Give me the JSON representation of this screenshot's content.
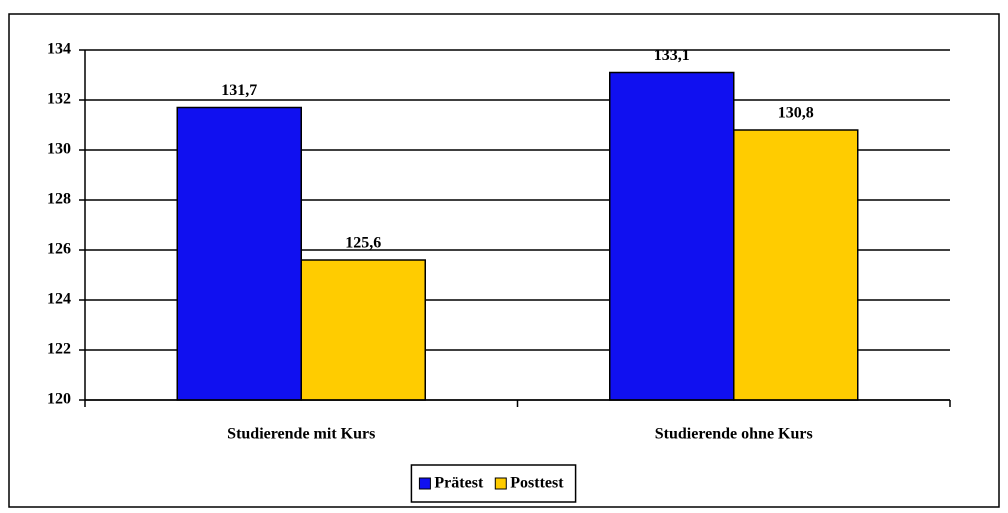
{
  "chart_data": {
    "type": "bar",
    "categories": [
      "Studierende mit Kurs",
      "Studierende ohne Kurs"
    ],
    "series": [
      {
        "name": "Prätest",
        "color": "#1010f0",
        "values": [
          131.7,
          133.1
        ],
        "value_labels": [
          "131,7",
          "133,1"
        ]
      },
      {
        "name": "Posttest",
        "color": "#ffcc00",
        "values": [
          125.6,
          130.8
        ],
        "value_labels": [
          "125,6",
          "130,8"
        ]
      }
    ],
    "ylim": [
      120,
      134
    ],
    "yticks": [
      120,
      122,
      124,
      126,
      128,
      130,
      132,
      134
    ],
    "grid": true,
    "legend": "bottom"
  }
}
